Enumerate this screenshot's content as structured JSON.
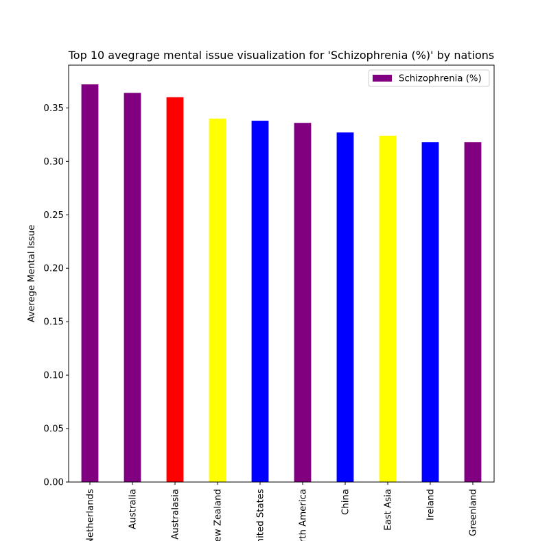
{
  "chart_data": {
    "type": "bar",
    "title": "Top 10 avegrage mental issue visualization for 'Schizophrenia (%)' by nations",
    "xlabel": "",
    "ylabel": "Averege Mental Issue",
    "categories": [
      "Netherlands",
      "Australia",
      "Australasia",
      "New Zealand",
      "United States",
      "North America",
      "China",
      "East Asia",
      "Ireland",
      "Greenland"
    ],
    "series": [
      {
        "name": "Schizophrenia (%)",
        "values": [
          0.372,
          0.364,
          0.36,
          0.34,
          0.338,
          0.336,
          0.327,
          0.324,
          0.318,
          0.318
        ]
      }
    ],
    "bar_colors": [
      "#800080",
      "#800080",
      "#ff0000",
      "#ffff00",
      "#0000ff",
      "#800080",
      "#0000ff",
      "#ffff00",
      "#0000ff",
      "#800080"
    ],
    "ylim": [
      0,
      0.39
    ],
    "yticks": [
      "0.00",
      "0.05",
      "0.10",
      "0.15",
      "0.20",
      "0.25",
      "0.30",
      "0.35"
    ],
    "grid": false,
    "legend_position": "top-right",
    "legend_color": "#800080"
  }
}
